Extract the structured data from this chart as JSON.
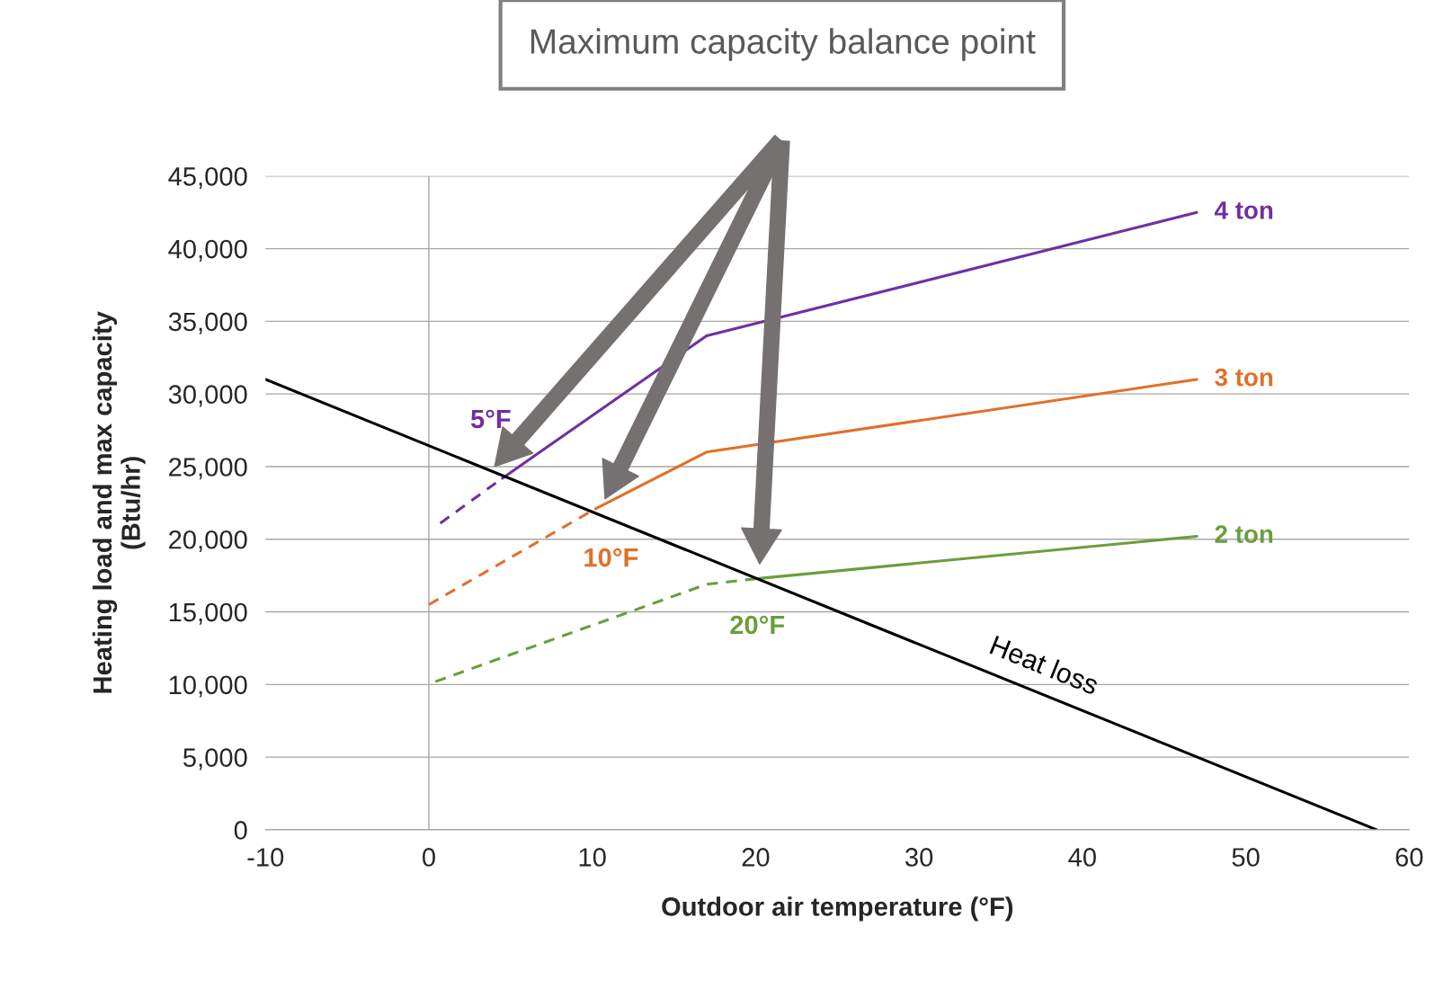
{
  "chart_data": {
    "type": "line",
    "xlabel": "Outdoor air temperature (°F)",
    "ylabel": "Heating load and max capacity\n(Btu/hr)",
    "xlim": [
      -10,
      60
    ],
    "xticks": [
      -10,
      0,
      10,
      20,
      30,
      40,
      50,
      60
    ],
    "ylim": [
      0,
      45000
    ],
    "yticks": [
      {
        "value": 0,
        "label": "0"
      },
      {
        "value": 5000,
        "label": "5,000"
      },
      {
        "value": 10000,
        "label": "10,000"
      },
      {
        "value": 15000,
        "label": "15,000"
      },
      {
        "value": 20000,
        "label": "20,000"
      },
      {
        "value": 25000,
        "label": "25,000"
      },
      {
        "value": 30000,
        "label": "30,000"
      },
      {
        "value": 35000,
        "label": "35,000"
      },
      {
        "value": 40000,
        "label": "40,000"
      },
      {
        "value": 45000,
        "label": "45,000"
      }
    ],
    "grid": "y",
    "ref_lines": [
      {
        "axis": "x",
        "value": 0,
        "color": "#a6a6a6"
      }
    ],
    "series": [
      {
        "name": "4 ton",
        "color": "#7030a0",
        "x": [
          4.5,
          17,
          47
        ],
        "values": [
          24200,
          34000,
          42500
        ],
        "line_style": "solid"
      },
      {
        "name": "3 ton",
        "color": "#e07028",
        "x": [
          10.2,
          17,
          47
        ],
        "values": [
          22100,
          26000,
          31000
        ],
        "line_style": "solid"
      },
      {
        "name": "2 ton",
        "color": "#6a9e3c",
        "x": [
          20.2,
          47
        ],
        "values": [
          17300,
          20200
        ],
        "line_style": "solid"
      },
      {
        "color": "#7030a0",
        "x": [
          0.7,
          4.5
        ],
        "values": [
          21100,
          24200
        ],
        "line_style": "dashed"
      },
      {
        "color": "#e07028",
        "x": [
          0,
          10.2
        ],
        "values": [
          15500,
          22100
        ],
        "line_style": "dashed"
      },
      {
        "color": "#6a9e3c",
        "x": [
          0.4,
          17,
          20.2
        ],
        "values": [
          10200,
          16900,
          17300
        ],
        "line_style": "dashed"
      },
      {
        "name": "Heat loss",
        "color": "#000000",
        "x": [
          -10,
          58
        ],
        "values": [
          31000,
          0
        ],
        "line_style": "solid"
      }
    ],
    "annotations": [
      "5°F",
      "10°F",
      "20°F",
      "Maximum capacity balance point"
    ]
  }
}
